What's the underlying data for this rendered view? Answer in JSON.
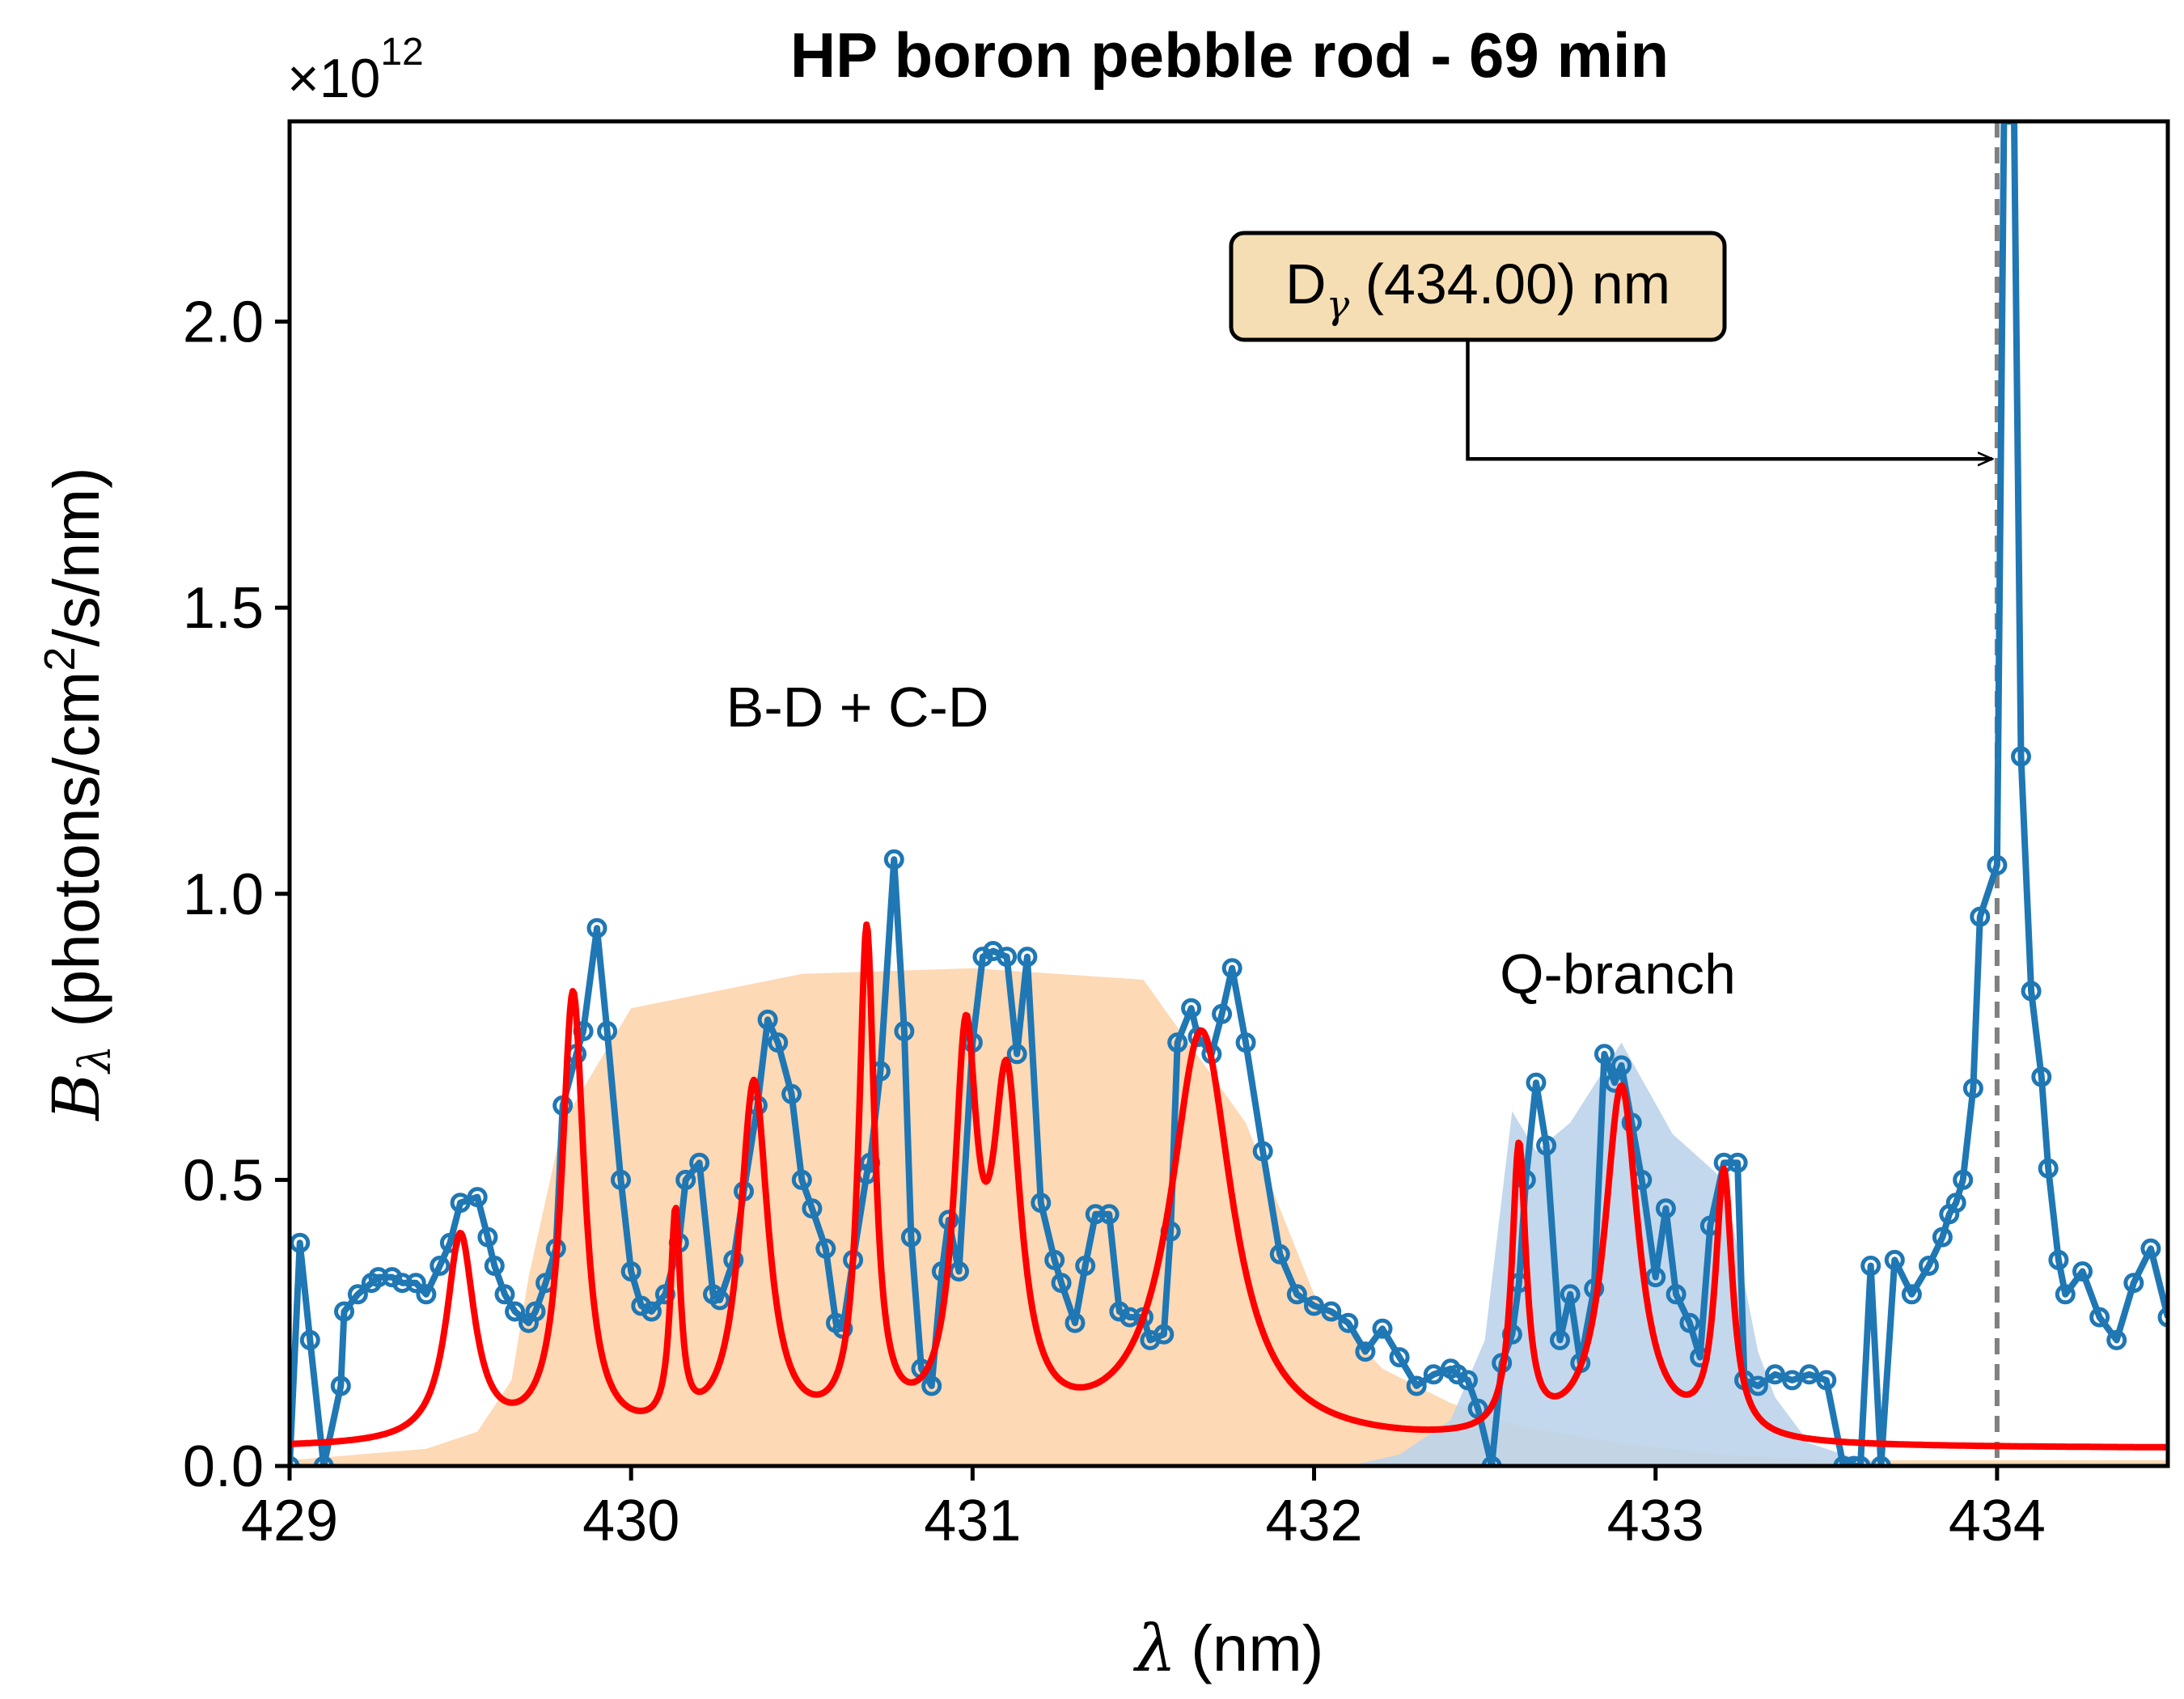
{
  "chart_data": {
    "type": "line",
    "title": "HP boron pebble rod - 69 min",
    "xlabel_symbol": "λ",
    "xlabel_unit": "(nm)",
    "ylabel_symbol": "B",
    "ylabel_subscript": "λ",
    "ylabel_unit_pre": "(photons/cm",
    "ylabel_unit_sup": "2",
    "ylabel_unit_post": "/s/nm)",
    "y_multiplier_base": "×10",
    "y_multiplier_exp": "12",
    "xlim": [
      429.0,
      434.5
    ],
    "ylim": [
      0.0,
      2.35
    ],
    "xticks": [
      429,
      430,
      431,
      432,
      433,
      434
    ],
    "yticks": [
      0.0,
      0.5,
      1.0,
      1.5,
      2.0
    ],
    "grid": false,
    "annotations": {
      "bd_cd_label": "B-D + C-D",
      "q_branch_label": "Q-branch",
      "dgamma_box": {
        "main": "D",
        "sub": "γ",
        "rest": " (434.00) nm",
        "line_x": 434.0,
        "arrow_y": 1.76,
        "box_anchor_x": 432.45
      }
    },
    "colors": {
      "measured": "#1f77b4",
      "fit": "#ff0000",
      "fill_bdcd": "#fdd9b5",
      "fill_q": "#bcd4ea",
      "box_face": "#f5deb3",
      "dashed_line": "#808080"
    },
    "series": [
      {
        "kind": "measured",
        "x": [
          429.0,
          429.03,
          429.06,
          429.1,
          429.15,
          429.16,
          429.2,
          429.24,
          429.26,
          429.3,
          429.33,
          429.37,
          429.4,
          429.44,
          429.47,
          429.5,
          429.55,
          429.58,
          429.6,
          429.63,
          429.66,
          429.7,
          429.72,
          429.75,
          429.78,
          429.8,
          429.84,
          429.86,
          429.9,
          429.93,
          429.97,
          430.0,
          430.03,
          430.06,
          430.1,
          430.14,
          430.16,
          430.2,
          430.24,
          430.26,
          430.3,
          430.33,
          430.37,
          430.4,
          430.43,
          430.47,
          430.5,
          430.53,
          430.57,
          430.6,
          430.62,
          430.65,
          430.69,
          430.7,
          430.73,
          430.77,
          430.8,
          430.82,
          430.85,
          430.88,
          430.91,
          430.93,
          430.96,
          431.0,
          431.03,
          431.06,
          431.1,
          431.13,
          431.16,
          431.2,
          431.24,
          431.26,
          431.3,
          431.33,
          431.36,
          431.4,
          431.43,
          431.46,
          431.5,
          431.52,
          431.56,
          431.58,
          431.6,
          431.64,
          431.66,
          431.7,
          431.73,
          431.76,
          431.8,
          431.85,
          431.9,
          431.95,
          432.0,
          432.05,
          432.1,
          432.15,
          432.2,
          432.25,
          432.3,
          432.35,
          432.4,
          432.42,
          432.45,
          432.48,
          432.52,
          432.55,
          432.58,
          432.6,
          432.62,
          432.65,
          432.68,
          432.72,
          432.75,
          432.78,
          432.82,
          432.85,
          432.88,
          432.9,
          432.93,
          432.96,
          433.0,
          433.03,
          433.06,
          433.1,
          433.13,
          433.16,
          433.2,
          433.24,
          433.26,
          433.3,
          433.35,
          433.4,
          433.45,
          433.5,
          433.55,
          433.58,
          433.6,
          433.63,
          433.66,
          433.7,
          433.75,
          433.8,
          433.84,
          433.86,
          433.88,
          433.9,
          433.93,
          433.95,
          434.0,
          434.02,
          434.05,
          434.07,
          434.1,
          434.13,
          434.15,
          434.18,
          434.2,
          434.25,
          434.3,
          434.35,
          434.4,
          434.45,
          434.5
        ],
        "y": [
          0.0,
          0.39,
          0.22,
          0.0,
          0.14,
          0.27,
          0.3,
          0.32,
          0.33,
          0.33,
          0.32,
          0.32,
          0.3,
          0.35,
          0.39,
          0.46,
          0.47,
          0.4,
          0.35,
          0.3,
          0.27,
          0.25,
          0.27,
          0.32,
          0.38,
          0.63,
          0.72,
          0.76,
          0.94,
          0.76,
          0.5,
          0.34,
          0.28,
          0.27,
          0.3,
          0.39,
          0.5,
          0.53,
          0.3,
          0.29,
          0.36,
          0.48,
          0.63,
          0.78,
          0.74,
          0.65,
          0.5,
          0.45,
          0.38,
          0.25,
          0.24,
          0.36,
          0.51,
          0.53,
          0.69,
          1.06,
          0.76,
          0.4,
          0.17,
          0.14,
          0.34,
          0.43,
          0.34,
          0.74,
          0.89,
          0.9,
          0.89,
          0.72,
          0.89,
          0.46,
          0.36,
          0.32,
          0.25,
          0.35,
          0.44,
          0.44,
          0.27,
          0.26,
          0.26,
          0.22,
          0.23,
          0.41,
          0.74,
          0.8,
          0.75,
          0.72,
          0.79,
          0.87,
          0.74,
          0.55,
          0.37,
          0.3,
          0.28,
          0.27,
          0.25,
          0.2,
          0.24,
          0.19,
          0.14,
          0.16,
          0.17,
          0.16,
          0.15,
          0.1,
          0.0,
          0.18,
          0.23,
          0.32,
          0.5,
          0.67,
          0.56,
          0.22,
          0.3,
          0.18,
          0.31,
          0.72,
          0.67,
          0.7,
          0.6,
          0.5,
          0.33,
          0.45,
          0.3,
          0.25,
          0.19,
          0.42,
          0.53,
          0.53,
          0.15,
          0.14,
          0.16,
          0.15,
          0.16,
          0.15,
          0.0,
          0.0,
          0.0,
          0.35,
          0.0,
          0.36,
          0.3,
          0.35,
          0.4,
          0.44,
          0.46,
          0.5,
          0.66,
          0.96,
          1.05,
          2.35,
          2.35,
          1.24,
          0.83,
          0.68,
          0.52,
          0.36,
          0.3,
          0.34,
          0.26,
          0.22,
          0.32,
          0.38,
          0.26
        ]
      },
      {
        "kind": "fit",
        "baseline": 0.03,
        "peaks": [
          {
            "x0": 429.5,
            "amp": 0.36,
            "w": 0.05
          },
          {
            "x0": 429.83,
            "amp": 0.78,
            "w": 0.04
          },
          {
            "x0": 430.13,
            "amp": 0.37,
            "w": 0.018
          },
          {
            "x0": 430.36,
            "amp": 0.62,
            "w": 0.05
          },
          {
            "x0": 430.69,
            "amp": 0.87,
            "w": 0.028
          },
          {
            "x0": 430.98,
            "amp": 0.64,
            "w": 0.04
          },
          {
            "x0": 431.1,
            "amp": 0.58,
            "w": 0.05
          },
          {
            "x0": 431.67,
            "amp": 0.72,
            "w": 0.11
          },
          {
            "x0": 432.6,
            "amp": 0.5,
            "w": 0.025
          },
          {
            "x0": 432.9,
            "amp": 0.62,
            "w": 0.06
          },
          {
            "x0": 433.2,
            "amp": 0.46,
            "w": 0.03
          }
        ]
      },
      {
        "kind": "fill_bdcd",
        "x": [
          429.0,
          429.2,
          429.4,
          429.55,
          429.65,
          429.7,
          429.8,
          430.0,
          430.5,
          431.0,
          431.5,
          431.8,
          432.0,
          432.2,
          432.4,
          432.6,
          432.9,
          433.2,
          433.5,
          434.5
        ],
        "y": [
          0.01,
          0.02,
          0.03,
          0.06,
          0.15,
          0.33,
          0.6,
          0.8,
          0.86,
          0.87,
          0.85,
          0.6,
          0.3,
          0.17,
          0.11,
          0.07,
          0.04,
          0.02,
          0.01,
          0.01
        ]
      },
      {
        "kind": "fill_q",
        "x": [
          432.1,
          432.25,
          432.4,
          432.5,
          432.58,
          432.65,
          432.75,
          432.9,
          433.05,
          433.2,
          433.3,
          433.35,
          433.45,
          433.6,
          433.7
        ],
        "y": [
          0.0,
          0.02,
          0.08,
          0.22,
          0.62,
          0.55,
          0.6,
          0.74,
          0.58,
          0.5,
          0.2,
          0.12,
          0.04,
          0.01,
          0.0
        ]
      }
    ]
  }
}
